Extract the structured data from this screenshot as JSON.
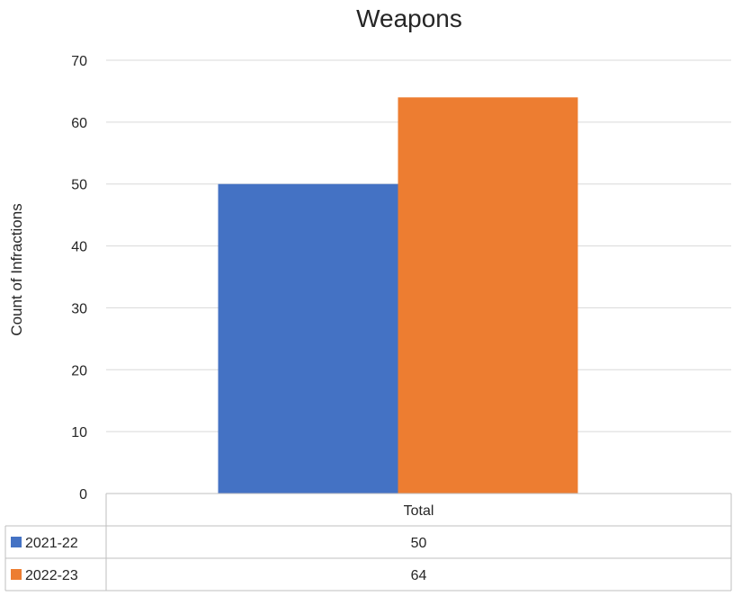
{
  "chart_data": {
    "type": "bar",
    "title": "Weapons",
    "xlabel": "",
    "ylabel": "Count of Infractions",
    "categories": [
      "Total"
    ],
    "series": [
      {
        "name": "2021-22",
        "values": [
          50
        ],
        "color": "#4472c4"
      },
      {
        "name": "2022-23",
        "values": [
          64
        ],
        "color": "#ed7d31"
      }
    ],
    "ylim": [
      0,
      70
    ],
    "yticks": [
      0,
      10,
      20,
      30,
      40,
      50,
      60,
      70
    ],
    "grid": true,
    "legend": "data-table"
  }
}
